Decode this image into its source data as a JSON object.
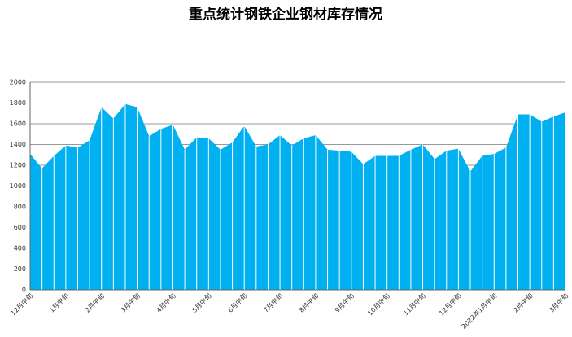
{
  "chart_data": {
    "type": "area",
    "title": "重点统计钢铁企业钢材库存情况",
    "categories": [
      "12月中旬",
      null,
      null,
      "1月中旬",
      null,
      null,
      "2月中旬",
      null,
      null,
      "3月中旬",
      null,
      null,
      "4月中旬",
      null,
      null,
      "5月中旬",
      null,
      null,
      "6月中旬",
      null,
      null,
      "7月中旬",
      null,
      null,
      "8月中旬",
      null,
      null,
      "9月中旬",
      null,
      null,
      "10月中旬",
      null,
      null,
      "11月中旬",
      null,
      null,
      "12月中旬",
      null,
      null,
      "2022年1月中旬",
      null,
      null,
      "2月中旬",
      null,
      null,
      "3月中旬"
    ],
    "values": [
      1310,
      1170,
      1290,
      1390,
      1370,
      1440,
      1760,
      1650,
      1790,
      1760,
      1480,
      1550,
      1590,
      1350,
      1470,
      1460,
      1350,
      1420,
      1580,
      1380,
      1400,
      1490,
      1390,
      1460,
      1490,
      1350,
      1340,
      1330,
      1210,
      1290,
      1290,
      1290,
      1350,
      1400,
      1260,
      1340,
      1360,
      1140,
      1290,
      1310,
      1370,
      1690,
      1690,
      1620,
      1670,
      1710
    ],
    "color": "#00b0f0",
    "ylim": [
      0,
      2000
    ],
    "yticks": [
      0,
      200,
      400,
      600,
      800,
      1000,
      1200,
      1400,
      1600,
      1800,
      2000
    ],
    "grid": true
  }
}
